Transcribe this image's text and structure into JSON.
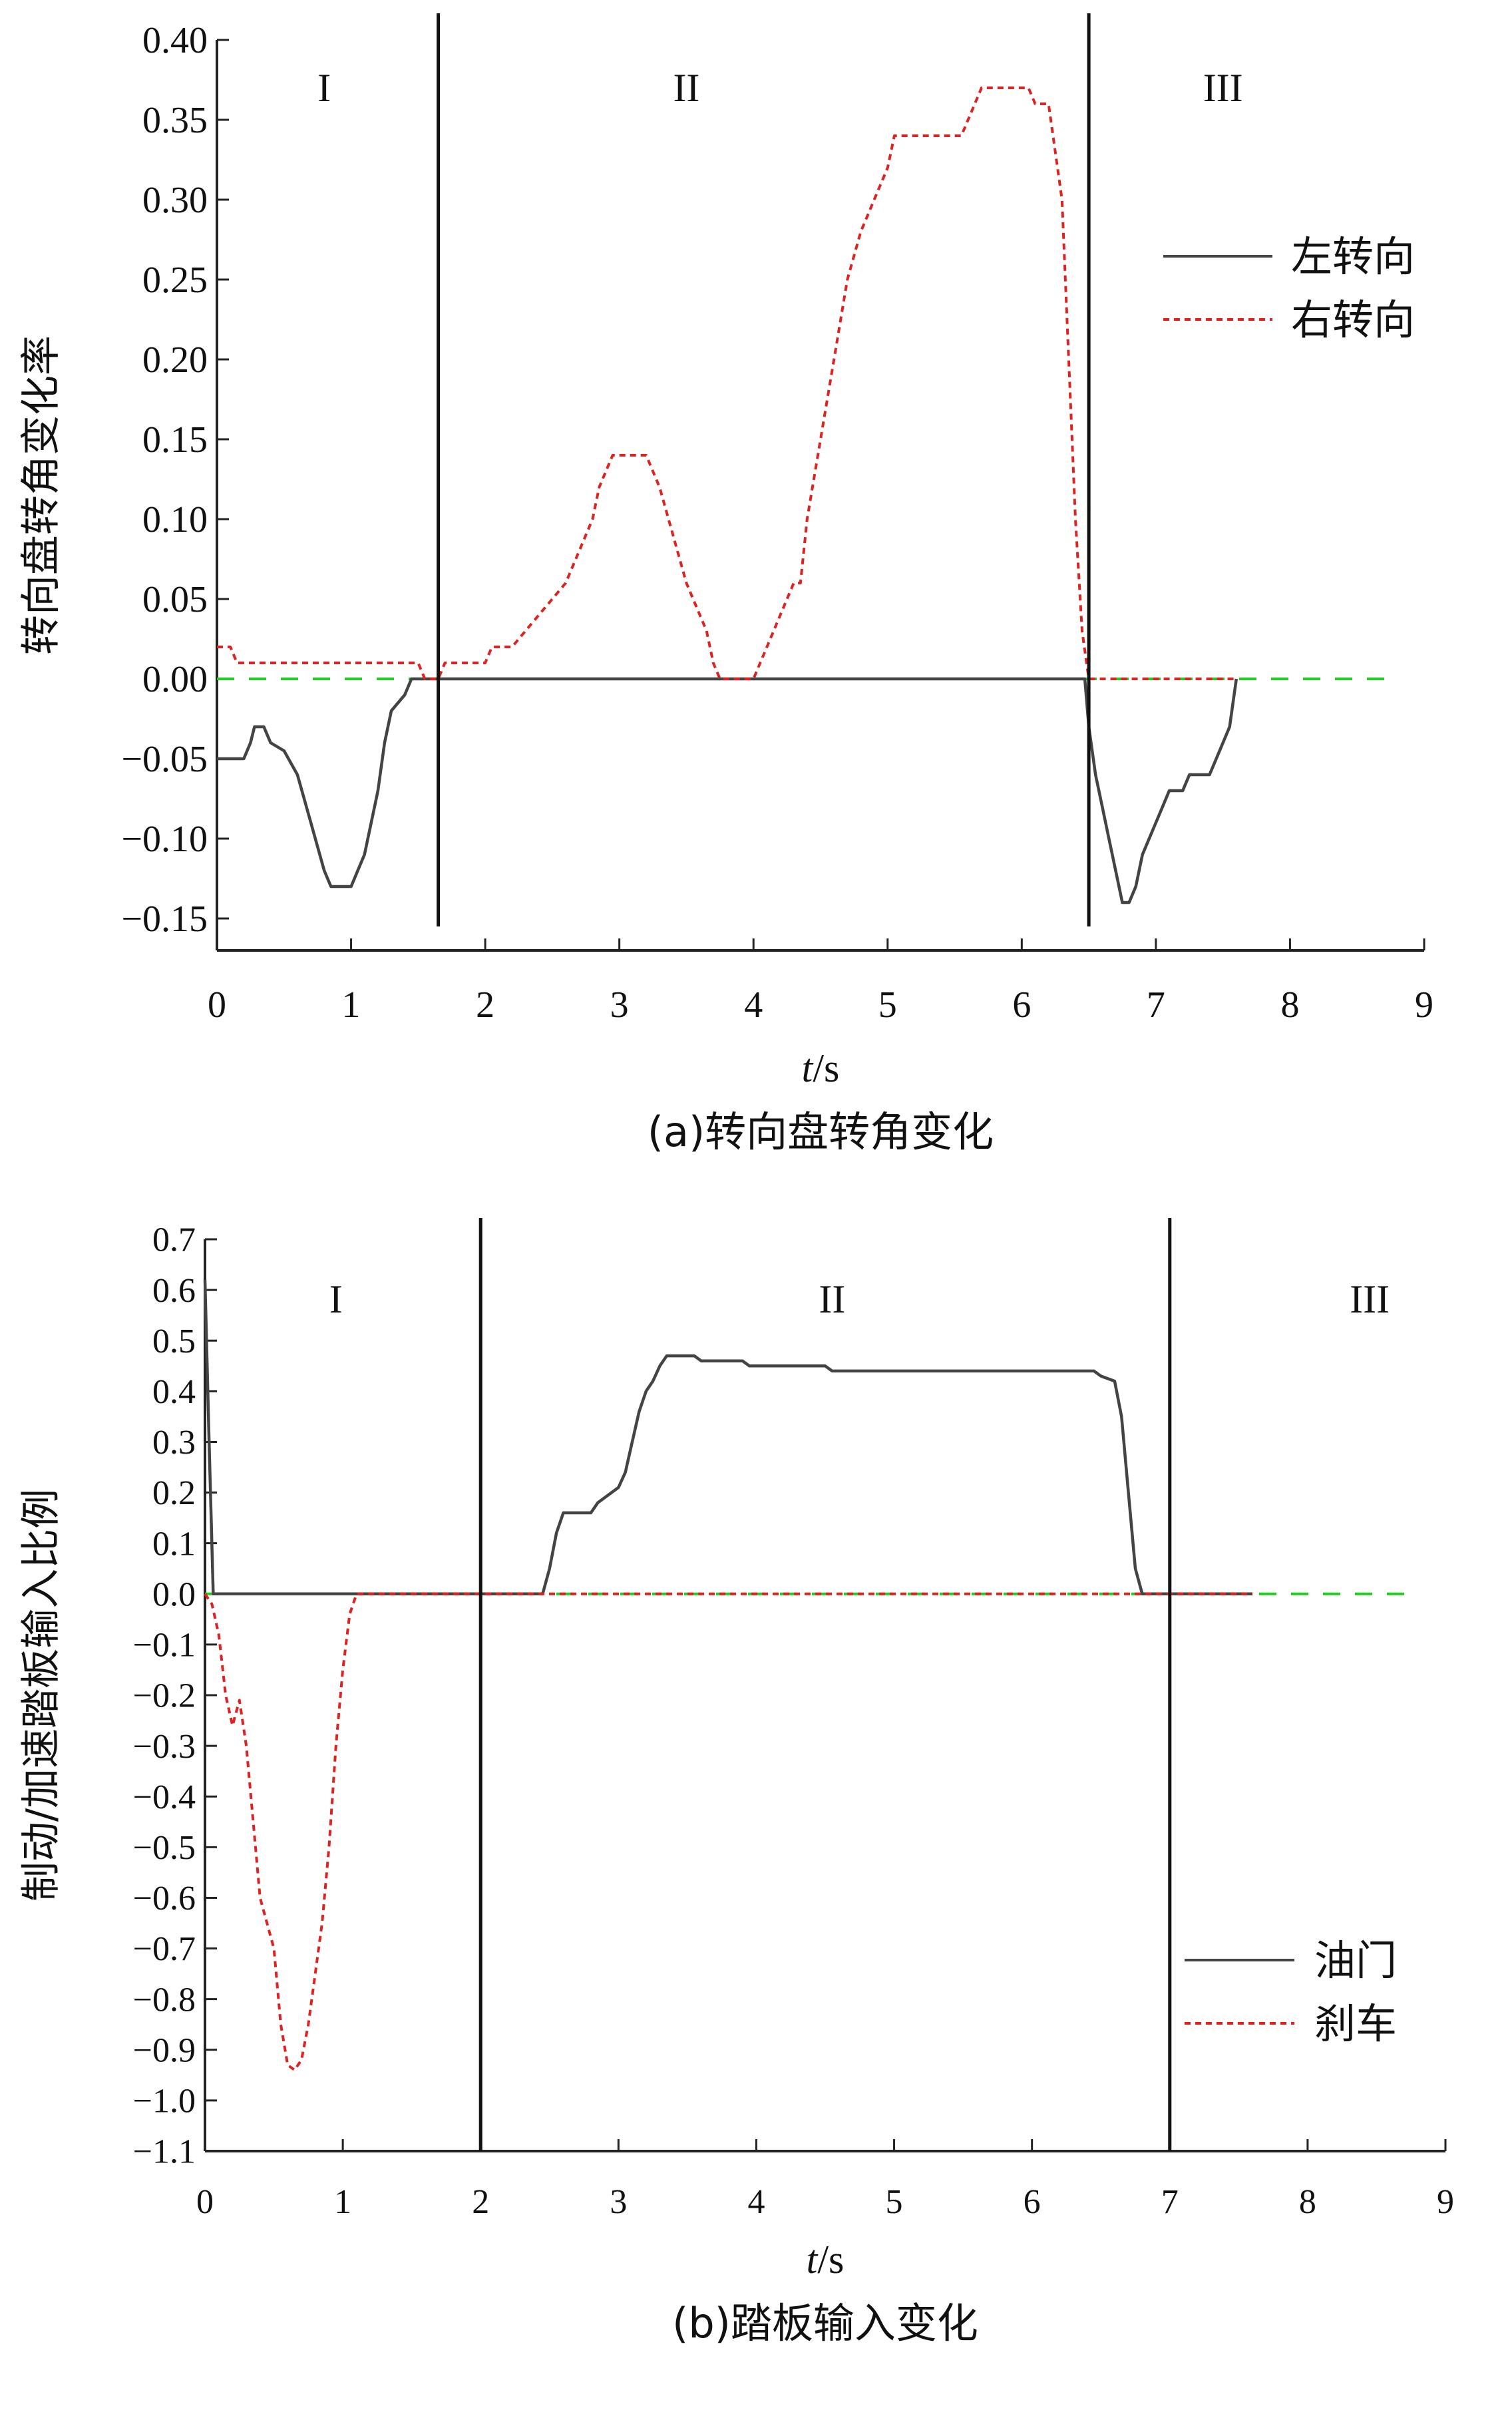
{
  "chart_data": [
    {
      "type": "line",
      "caption": "(a)转向盘转角变化",
      "xlabel_italic": "t",
      "xlabel_unit": "/s",
      "ylabel": "转向盘转角变化率",
      "xlim": [
        0,
        9
      ],
      "ylim": [
        -0.17,
        0.4
      ],
      "xticks": [
        0,
        1,
        2,
        3,
        4,
        5,
        6,
        7,
        8,
        9
      ],
      "yticks": [
        0.4,
        0.35,
        0.3,
        0.25,
        0.2,
        0.15,
        0.1,
        0.05,
        0.0,
        -0.05,
        -0.1,
        -0.15
      ],
      "ytick_labels": [
        "0.40",
        "0.35",
        "0.30",
        "0.25",
        "0.20",
        "0.15",
        "0.10",
        "0.05",
        "0.00",
        "−0.05",
        "−0.10",
        "−0.15"
      ],
      "regions": [
        {
          "label": "I",
          "x": 0.8
        },
        {
          "label": "II",
          "x": 3.5
        },
        {
          "label": "III",
          "x": 7.5
        }
      ],
      "dividers": [
        1.65,
        6.5
      ],
      "reference_line": {
        "y": 0,
        "color": "#22cc22"
      },
      "legend_position": "upper-right",
      "series": [
        {
          "name": "左转向",
          "color": "#444444",
          "style": "solid",
          "points": [
            [
              0,
              -0.05
            ],
            [
              0.2,
              -0.05
            ],
            [
              0.25,
              -0.04
            ],
            [
              0.28,
              -0.03
            ],
            [
              0.35,
              -0.03
            ],
            [
              0.4,
              -0.04
            ],
            [
              0.5,
              -0.045
            ],
            [
              0.6,
              -0.06
            ],
            [
              0.7,
              -0.09
            ],
            [
              0.8,
              -0.12
            ],
            [
              0.85,
              -0.13
            ],
            [
              1.0,
              -0.13
            ],
            [
              1.05,
              -0.12
            ],
            [
              1.1,
              -0.11
            ],
            [
              1.15,
              -0.09
            ],
            [
              1.2,
              -0.07
            ],
            [
              1.25,
              -0.04
            ],
            [
              1.3,
              -0.02
            ],
            [
              1.4,
              -0.01
            ],
            [
              1.45,
              0
            ],
            [
              1.65,
              0
            ],
            [
              6.47,
              0
            ],
            [
              6.5,
              -0.03
            ],
            [
              6.55,
              -0.06
            ],
            [
              6.6,
              -0.08
            ],
            [
              6.65,
              -0.1
            ],
            [
              6.7,
              -0.12
            ],
            [
              6.75,
              -0.14
            ],
            [
              6.8,
              -0.14
            ],
            [
              6.85,
              -0.13
            ],
            [
              6.9,
              -0.11
            ],
            [
              7.0,
              -0.09
            ],
            [
              7.05,
              -0.08
            ],
            [
              7.1,
              -0.07
            ],
            [
              7.2,
              -0.07
            ],
            [
              7.25,
              -0.06
            ],
            [
              7.4,
              -0.06
            ],
            [
              7.45,
              -0.05
            ],
            [
              7.5,
              -0.04
            ],
            [
              7.55,
              -0.03
            ],
            [
              7.6,
              0
            ]
          ]
        },
        {
          "name": "右转向",
          "color": "#dd2222",
          "style": "dotted",
          "points": [
            [
              0,
              0.02
            ],
            [
              0.1,
              0.02
            ],
            [
              0.15,
              0.01
            ],
            [
              1.5,
              0.01
            ],
            [
              1.55,
              0
            ],
            [
              1.65,
              0
            ],
            [
              1.7,
              0.01
            ],
            [
              2.0,
              0.01
            ],
            [
              2.05,
              0.02
            ],
            [
              2.2,
              0.02
            ],
            [
              2.3,
              0.03
            ],
            [
              2.4,
              0.04
            ],
            [
              2.5,
              0.05
            ],
            [
              2.6,
              0.06
            ],
            [
              2.7,
              0.08
            ],
            [
              2.8,
              0.1
            ],
            [
              2.85,
              0.12
            ],
            [
              2.9,
              0.13
            ],
            [
              2.95,
              0.14
            ],
            [
              3.2,
              0.14
            ],
            [
              3.3,
              0.12
            ],
            [
              3.4,
              0.09
            ],
            [
              3.5,
              0.06
            ],
            [
              3.6,
              0.04
            ],
            [
              3.65,
              0.03
            ],
            [
              3.7,
              0.01
            ],
            [
              3.75,
              0
            ],
            [
              4.0,
              0
            ],
            [
              4.05,
              0.01
            ],
            [
              4.1,
              0.02
            ],
            [
              4.2,
              0.04
            ],
            [
              4.3,
              0.06
            ],
            [
              4.35,
              0.06
            ],
            [
              4.4,
              0.1
            ],
            [
              4.5,
              0.15
            ],
            [
              4.6,
              0.2
            ],
            [
              4.7,
              0.25
            ],
            [
              4.8,
              0.28
            ],
            [
              4.9,
              0.3
            ],
            [
              5.0,
              0.32
            ],
            [
              5.05,
              0.34
            ],
            [
              5.55,
              0.34
            ],
            [
              5.6,
              0.35
            ],
            [
              5.7,
              0.37
            ],
            [
              6.05,
              0.37
            ],
            [
              6.1,
              0.36
            ],
            [
              6.2,
              0.36
            ],
            [
              6.3,
              0.3
            ],
            [
              6.35,
              0.2
            ],
            [
              6.4,
              0.1
            ],
            [
              6.45,
              0.03
            ],
            [
              6.5,
              0
            ],
            [
              7.6,
              0
            ]
          ]
        }
      ]
    },
    {
      "type": "line",
      "caption": "(b)踏板输入变化",
      "xlabel_italic": "t",
      "xlabel_unit": "/s",
      "ylabel": "制动/加速踏板输入比例",
      "xlim": [
        0,
        9
      ],
      "ylim": [
        -1.1,
        0.7
      ],
      "xticks": [
        0,
        1,
        2,
        3,
        4,
        5,
        6,
        7,
        8,
        9
      ],
      "yticks": [
        0.7,
        0.6,
        0.5,
        0.4,
        0.3,
        0.2,
        0.1,
        0.0,
        -0.1,
        -0.2,
        -0.3,
        -0.4,
        -0.5,
        -0.6,
        -0.7,
        -0.8,
        -0.9,
        -1.0,
        -1.1
      ],
      "ytick_labels": [
        "0.7",
        "0.6",
        "0.5",
        "0.4",
        "0.3",
        "0.2",
        "0.1",
        "0.0",
        "−0.1",
        "−0.2",
        "−0.3",
        "−0.4",
        "−0.5",
        "−0.6",
        "−0.7",
        "−0.8",
        "−0.9",
        "−1.0",
        "−1.1"
      ],
      "regions": [
        {
          "label": "I",
          "x": 0.95
        },
        {
          "label": "II",
          "x": 4.55
        },
        {
          "label": "III",
          "x": 8.45
        }
      ],
      "dividers": [
        2.0,
        7.0
      ],
      "reference_line": {
        "y": 0,
        "color": "#22cc22"
      },
      "legend_position": "lower-right",
      "series": [
        {
          "name": "油门",
          "color": "#444444",
          "style": "solid",
          "points": [
            [
              0,
              0.62
            ],
            [
              0.03,
              0.3
            ],
            [
              0.06,
              0
            ],
            [
              2.45,
              0
            ],
            [
              2.5,
              0.05
            ],
            [
              2.55,
              0.12
            ],
            [
              2.6,
              0.16
            ],
            [
              2.8,
              0.16
            ],
            [
              2.85,
              0.18
            ],
            [
              2.9,
              0.19
            ],
            [
              3.0,
              0.21
            ],
            [
              3.05,
              0.24
            ],
            [
              3.1,
              0.3
            ],
            [
              3.15,
              0.36
            ],
            [
              3.2,
              0.4
            ],
            [
              3.25,
              0.42
            ],
            [
              3.3,
              0.45
            ],
            [
              3.35,
              0.47
            ],
            [
              3.55,
              0.47
            ],
            [
              3.6,
              0.46
            ],
            [
              3.9,
              0.46
            ],
            [
              3.95,
              0.45
            ],
            [
              4.5,
              0.45
            ],
            [
              4.55,
              0.44
            ],
            [
              6.45,
              0.44
            ],
            [
              6.5,
              0.43
            ],
            [
              6.6,
              0.42
            ],
            [
              6.65,
              0.35
            ],
            [
              6.7,
              0.2
            ],
            [
              6.75,
              0.05
            ],
            [
              6.8,
              0
            ],
            [
              7.6,
              0
            ]
          ]
        },
        {
          "name": "刹车",
          "color": "#dd2222",
          "style": "dotted",
          "points": [
            [
              0,
              0
            ],
            [
              0.05,
              -0.02
            ],
            [
              0.1,
              -0.08
            ],
            [
              0.15,
              -0.2
            ],
            [
              0.2,
              -0.26
            ],
            [
              0.25,
              -0.21
            ],
            [
              0.3,
              -0.3
            ],
            [
              0.35,
              -0.45
            ],
            [
              0.4,
              -0.6
            ],
            [
              0.5,
              -0.7
            ],
            [
              0.55,
              -0.85
            ],
            [
              0.6,
              -0.93
            ],
            [
              0.65,
              -0.94
            ],
            [
              0.7,
              -0.92
            ],
            [
              0.75,
              -0.85
            ],
            [
              0.8,
              -0.75
            ],
            [
              0.85,
              -0.65
            ],
            [
              0.9,
              -0.5
            ],
            [
              0.95,
              -0.3
            ],
            [
              1.0,
              -0.15
            ],
            [
              1.05,
              -0.04
            ],
            [
              1.1,
              0
            ],
            [
              7.6,
              0
            ]
          ]
        }
      ]
    }
  ]
}
